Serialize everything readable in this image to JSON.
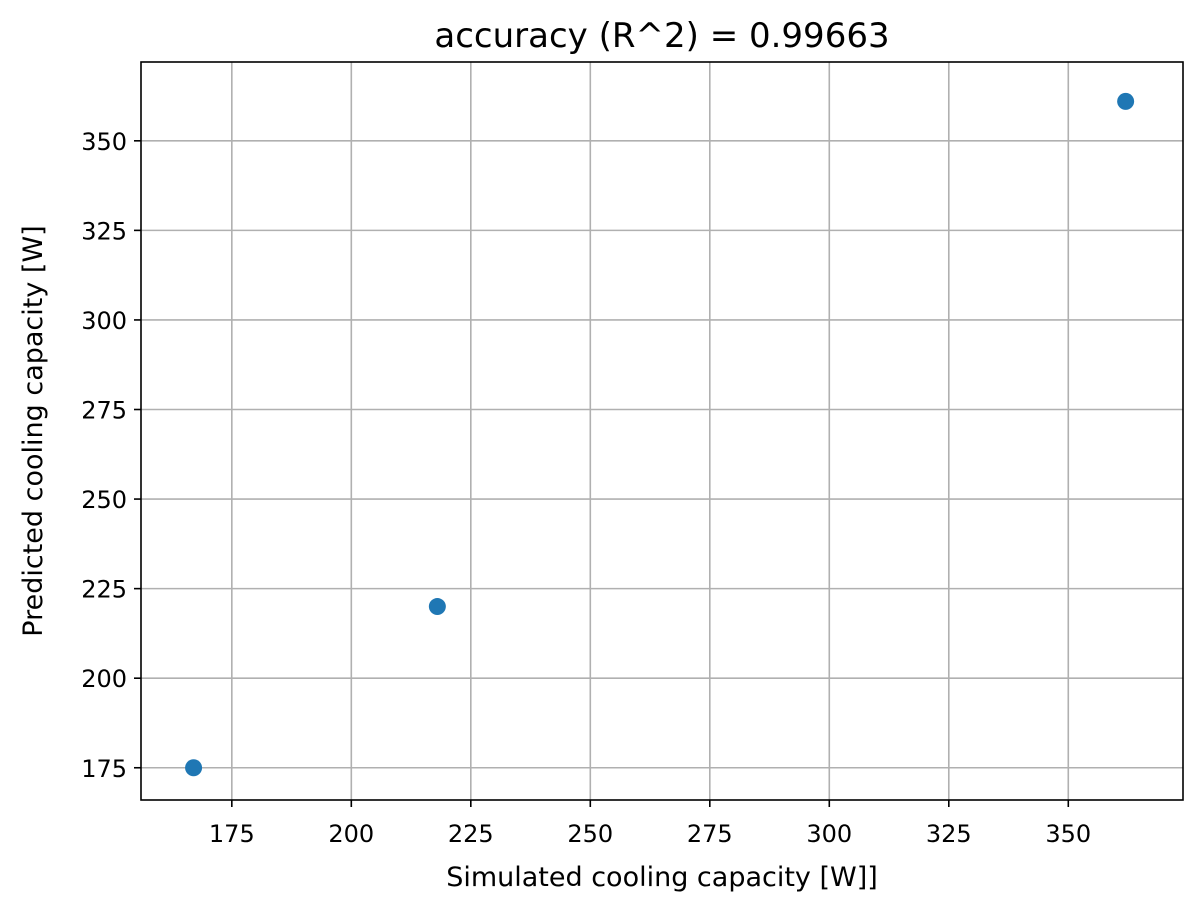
{
  "chart_data": {
    "type": "scatter",
    "title": "accuracy (R^2) =  0.99663",
    "xlabel": "Simulated cooling capacity [W]]",
    "ylabel": "Predicted cooling capacity [W]",
    "xlim": [
      156,
      374
    ],
    "ylim": [
      166,
      372
    ],
    "xticks": [
      175,
      200,
      225,
      250,
      275,
      300,
      325,
      350
    ],
    "yticks": [
      175,
      200,
      225,
      250,
      275,
      300,
      325,
      350
    ],
    "xtick_labels": [
      "175",
      "200",
      "225",
      "250",
      "275",
      "300",
      "325",
      "350"
    ],
    "ytick_labels": [
      "175",
      "200",
      "225",
      "250",
      "275",
      "300",
      "325",
      "350"
    ],
    "grid": true,
    "series": [
      {
        "x": [
          167,
          218,
          362
        ],
        "y": [
          175,
          220,
          361
        ],
        "color": "#1f77b4"
      }
    ]
  }
}
